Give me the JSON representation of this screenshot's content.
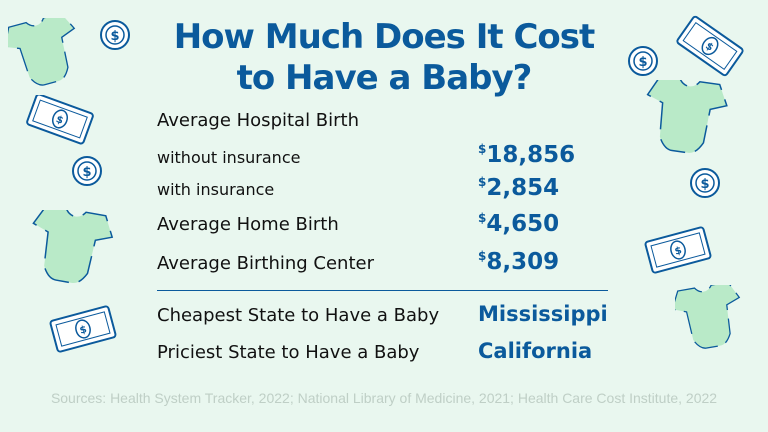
{
  "title": {
    "line1": "How Much Does It Cost",
    "line2": "to Have a Baby?"
  },
  "rows": [
    {
      "label": "Average Hospital Birth"
    },
    {
      "label": "without insurance",
      "currency": "$",
      "value": "18,856"
    },
    {
      "label": "with insurance",
      "currency": "$",
      "value": "2,854"
    },
    {
      "label": "Average Home Birth",
      "currency": "$",
      "value": "4,650"
    },
    {
      "label": "Average Birthing Center",
      "currency": "$",
      "value": "8,309"
    }
  ],
  "states": [
    {
      "label": "Cheapest State to Have a Baby",
      "value": "Mississippi"
    },
    {
      "label": "Priciest State to Have a Baby",
      "value": "California"
    }
  ],
  "sources": "Sources: Health System Tracker, 2022; National Library of Medicine, 2021; Health Care Cost Institute, 2022",
  "colors": {
    "background": "#e9f7ef",
    "accent": "#0b5a9c",
    "onesie": "#b9eac8"
  },
  "icons": [
    "onesie-icon",
    "coin-icon",
    "dollar-bill-icon"
  ]
}
